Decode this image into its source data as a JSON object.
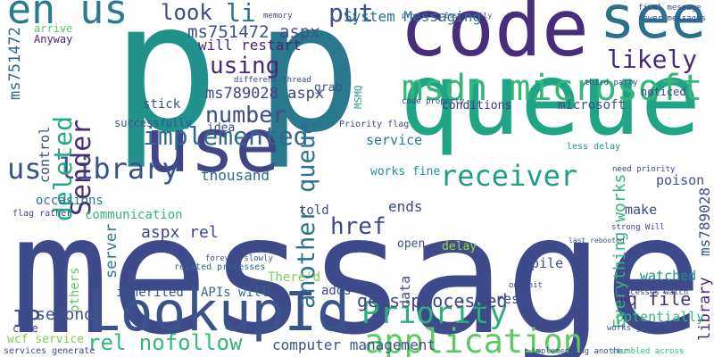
{
  "words": [
    {
      "text": "message"
    },
    {
      "text": "p"
    },
    {
      "text": "p"
    },
    {
      "text": "code"
    },
    {
      "text": "see"
    },
    {
      "text": "queue"
    },
    {
      "text": "msdn microsoft"
    },
    {
      "text": "use"
    },
    {
      "text": "LookupId"
    },
    {
      "text": "application"
    },
    {
      "text": "Priority"
    },
    {
      "text": "receiver"
    },
    {
      "text": "en us"
    },
    {
      "text": "us library"
    },
    {
      "text": "Sender"
    },
    {
      "text": "deleted"
    },
    {
      "text": "ms751472"
    },
    {
      "text": "implemented"
    },
    {
      "text": "number"
    },
    {
      "text": "using"
    },
    {
      "text": "look"
    },
    {
      "text": "li"
    },
    {
      "text": "put"
    },
    {
      "text": "System Messaging"
    },
    {
      "text": "ms751472 aspx"
    },
    {
      "text": "will restart"
    },
    {
      "text": "ms789028 aspx"
    },
    {
      "text": "likely"
    },
    {
      "text": "another queue"
    },
    {
      "text": "href"
    },
    {
      "text": "gets processed"
    },
    {
      "text": "mq file"
    },
    {
      "text": "aspx rel"
    },
    {
      "text": "rel nofollow"
    },
    {
      "text": "computer management"
    },
    {
      "text": "Everything works"
    },
    {
      "text": "ms789028"
    },
    {
      "text": "library"
    },
    {
      "text": "There'd"
    },
    {
      "text": "IP"
    },
    {
      "text": "second"
    },
    {
      "text": "wcf service"
    },
    {
      "text": "inherited"
    },
    {
      "text": "APIs will"
    },
    {
      "text": "occasions"
    },
    {
      "text": "communication"
    },
    {
      "text": "server"
    },
    {
      "text": "thousand"
    },
    {
      "text": "idea"
    },
    {
      "text": "stick"
    },
    {
      "text": "control"
    },
    {
      "text": "service"
    },
    {
      "text": "conditions"
    },
    {
      "text": "code property"
    },
    {
      "text": "works fine"
    },
    {
      "text": "ends"
    },
    {
      "text": "open"
    },
    {
      "text": "delay"
    },
    {
      "text": "poison"
    },
    {
      "text": "make"
    },
    {
      "text": "watched"
    },
    {
      "text": "potentially"
    },
    {
      "text": "rest"
    },
    {
      "text": "pile"
    },
    {
      "text": "data"
    },
    {
      "text": "adds"
    },
    {
      "text": "told"
    },
    {
      "text": "grab"
    },
    {
      "text": "MSMQ"
    },
    {
      "text": "noticed"
    },
    {
      "text": "microsoft"
    },
    {
      "text": "third party"
    },
    {
      "text": "Anyway"
    },
    {
      "text": "arrive"
    },
    {
      "text": "different thread"
    },
    {
      "text": "memory"
    },
    {
      "text": "final message"
    },
    {
      "text": "fewer messages"
    },
    {
      "text": "processes Essentially"
    },
    {
      "text": "Priority flag"
    },
    {
      "text": "less delay"
    },
    {
      "text": "need priority"
    },
    {
      "text": "last rebooted"
    },
    {
      "text": "one hit"
    },
    {
      "text": "strong Will"
    },
    {
      "text": "processes watch"
    },
    {
      "text": "related processes"
    },
    {
      "text": "flag rather"
    },
    {
      "text": "works great"
    },
    {
      "text": "forever slowly"
    },
    {
      "text": "implementing another"
    },
    {
      "text": "stumbled across"
    },
    {
      "text": "services generate"
    },
    {
      "text": "others"
    },
    {
      "text": "come"
    },
    {
      "text": "successfully"
    }
  ]
}
